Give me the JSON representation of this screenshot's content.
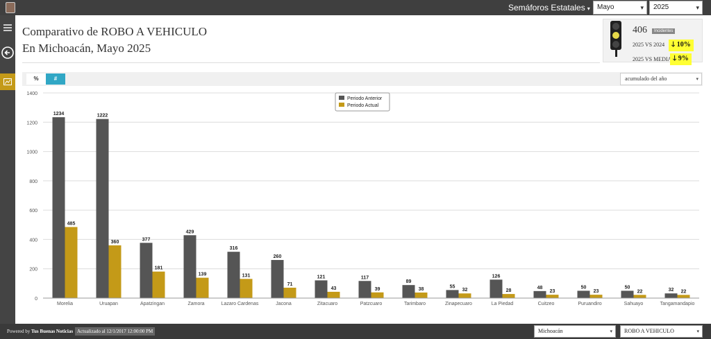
{
  "topbar": {
    "menu_title": "Semáforos Estatales",
    "month_select": "Mayo",
    "year_select": "2025"
  },
  "header": {
    "title_line1": "Comparativo de ROBO A VEHICULO",
    "title_line2": "En Michoacán, Mayo 2025"
  },
  "semaforo": {
    "light_color": "#e6d94a",
    "incidents_value": "406",
    "incidents_label": "Incidentes",
    "compare_year_label": "2025 VS 2024",
    "compare_year_value": "10%",
    "compare_mean_label": "2025 VS MEDIA",
    "compare_mean_value": "9%",
    "highlight_color": "#ffff33"
  },
  "toolbar": {
    "percent_label": "%",
    "number_label": "#",
    "period_select": "acumulado del año"
  },
  "chart_data": {
    "type": "bar",
    "categories": [
      "Morelia",
      "Uruapan",
      "Apatzingan",
      "Zamora",
      "Lazaro Cardenas",
      "Jacona",
      "Zitacuaro",
      "Patzcuaro",
      "Tarimbaro",
      "Zinapecuaro",
      "La Piedad",
      "Cuitzeo",
      "Puruandiro",
      "Sahuayo",
      "Tangamandapio"
    ],
    "series": [
      {
        "name": "Periodo Anterior",
        "color": "#555555",
        "values": [
          1234,
          1222,
          377,
          429,
          316,
          260,
          121,
          117,
          89,
          55,
          126,
          48,
          50,
          50,
          32
        ]
      },
      {
        "name": "Periodo Actual",
        "color": "#c49a18",
        "values": [
          485,
          360,
          181,
          139,
          131,
          71,
          43,
          39,
          38,
          32,
          28,
          23,
          23,
          22,
          22
        ]
      }
    ],
    "ylim": [
      0,
      1400
    ],
    "yticks": [
      "0",
      "200",
      "400",
      "600",
      "800",
      "1000",
      "1200",
      "1400"
    ],
    "grid": true,
    "legend_position": "top-center"
  },
  "footer": {
    "powered_prefix": "Powered by",
    "powered_brand": "Tus Buenas Noticias",
    "updated": "Actualizado al 12/1/2017 12:00:00 PM",
    "state_select": "Michoacán",
    "crime_select": "ROBO A VEHICULO"
  }
}
